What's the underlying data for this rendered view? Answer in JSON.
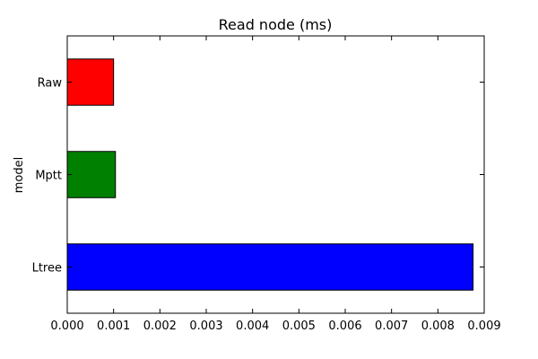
{
  "chart_data": {
    "type": "bar",
    "orientation": "horizontal",
    "title": "Read node (ms)",
    "xlabel": "",
    "ylabel": "model",
    "categories": [
      "Raw",
      "Mptt",
      "Ltree"
    ],
    "values": [
      0.001,
      0.00104,
      0.00876
    ],
    "bar_colors": [
      "#ff0000",
      "#008000",
      "#0000ff"
    ],
    "xlim": [
      0,
      0.009
    ],
    "xticks": [
      "0.000",
      "0.001",
      "0.002",
      "0.003",
      "0.004",
      "0.005",
      "0.006",
      "0.007",
      "0.008",
      "0.009"
    ],
    "grid": false,
    "legend": "none"
  }
}
